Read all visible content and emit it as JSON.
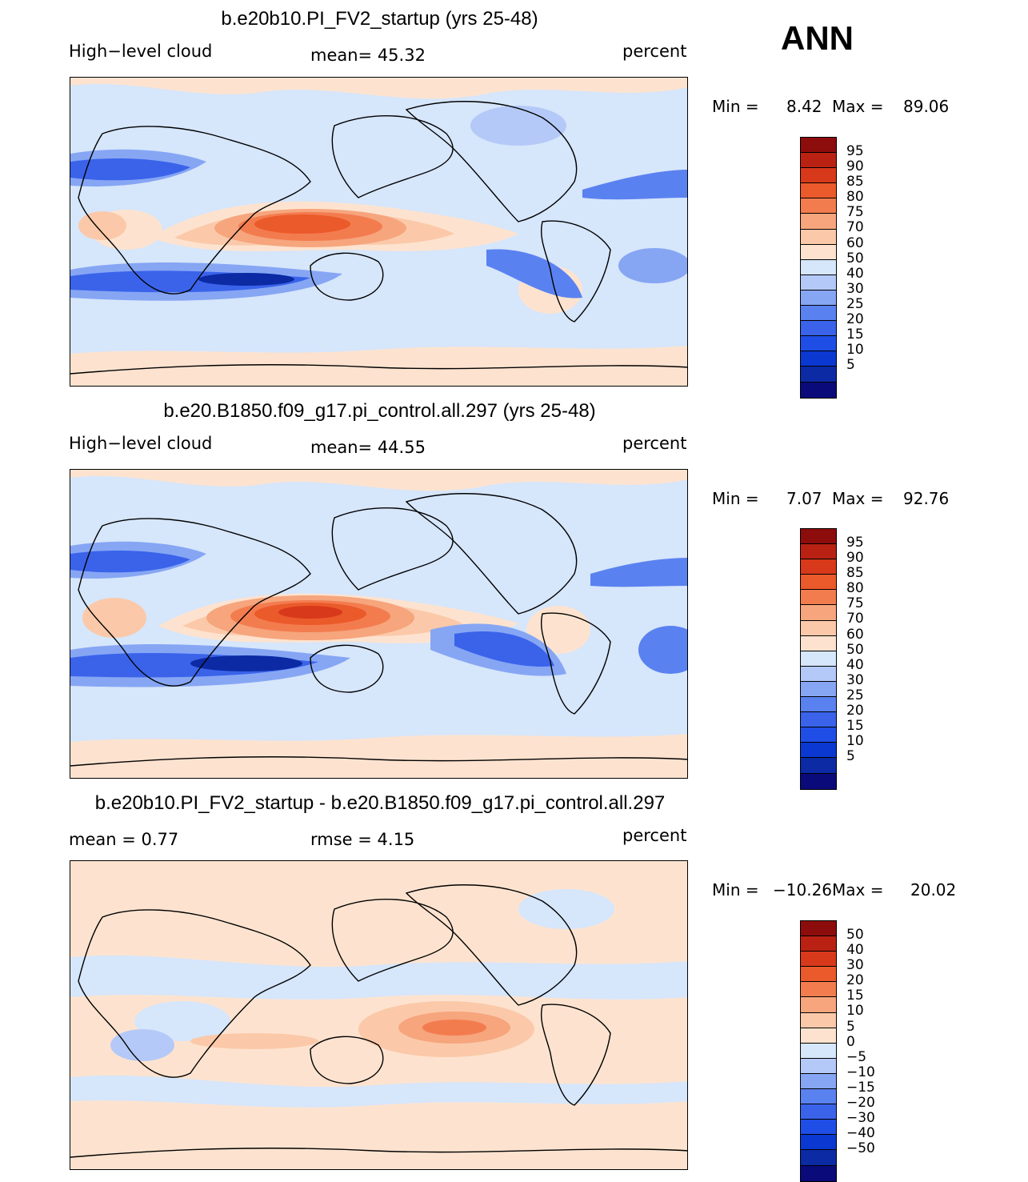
{
  "season": "ANN",
  "variable": "High−level cloud",
  "units": "percent",
  "colors": {
    "abs": [
      "#0a0a7a",
      "#0b2aa4",
      "#0a38d0",
      "#1f4ee6",
      "#3a63ea",
      "#5a81f0",
      "#86a6f4",
      "#b4c9f7",
      "#d6e6fb",
      "#fde3cf",
      "#fbc9a9",
      "#f6a57d",
      "#f37c4f",
      "#eb5a2a",
      "#d7391a",
      "#b92213",
      "#8d0c0c"
    ],
    "diff": [
      "#0a0a7a",
      "#0b2aa4",
      "#0a38d0",
      "#1f4ee6",
      "#3a63ea",
      "#5a81f0",
      "#86a6f4",
      "#b4c9f7",
      "#d6e6fb",
      "#fde3cf",
      "#fbc9a9",
      "#f6a57d",
      "#f37c4f",
      "#eb5a2a",
      "#d7391a",
      "#b92213",
      "#8d0c0c"
    ]
  },
  "panels": [
    {
      "title": "b.e20b10.PI_FV2_startup (yrs 25-48)",
      "left_label": "High−level cloud",
      "mid_label": "mean=   45.32",
      "right_label": "percent",
      "min_label": "Min =",
      "min_value": "8.42",
      "max_label": "Max =",
      "max_value": "89.06",
      "levels": [
        "95",
        "90",
        "85",
        "80",
        "75",
        "70",
        "60",
        "50",
        "40",
        "30",
        "25",
        "20",
        "15",
        "10",
        "5"
      ]
    },
    {
      "title": "b.e20.B1850.f09_g17.pi_control.all.297 (yrs 25-48)",
      "left_label": "High−level cloud",
      "mid_label": "mean=   44.55",
      "right_label": "percent",
      "min_label": "Min =",
      "min_value": "7.07",
      "max_label": "Max =",
      "max_value": "92.76",
      "levels": [
        "95",
        "90",
        "85",
        "80",
        "75",
        "70",
        "60",
        "50",
        "40",
        "30",
        "25",
        "20",
        "15",
        "10",
        "5"
      ]
    },
    {
      "title": "b.e20b10.PI_FV2_startup - b.e20.B1850.f09_g17.pi_control.all.297",
      "left_label": "mean =     0.77",
      "mid_label": "rmse =     4.15",
      "right_label": "percent",
      "min_label": "Min =",
      "min_value": "−10.26",
      "max_label": "Max =",
      "max_value": "20.02",
      "levels": [
        "50",
        "40",
        "30",
        "20",
        "15",
        "10",
        "5",
        "0",
        "−5",
        "−10",
        "−15",
        "−20",
        "−30",
        "−40",
        "−50"
      ]
    }
  ]
}
